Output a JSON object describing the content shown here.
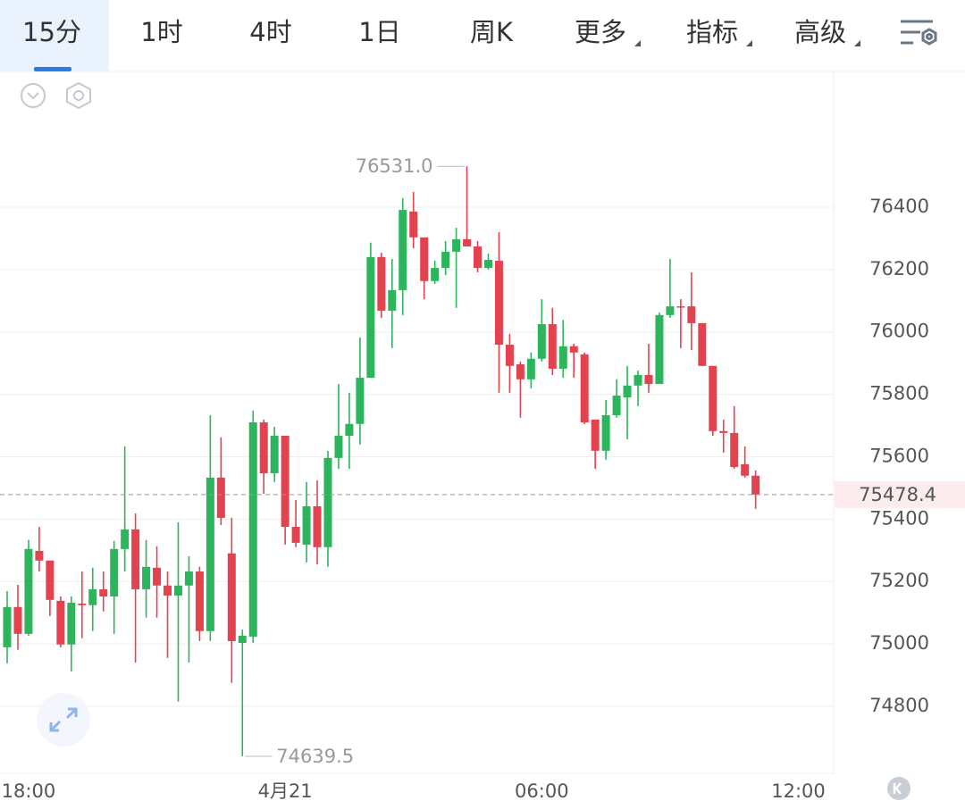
{
  "toolbar": {
    "tabs": [
      "15分",
      "1时",
      "4时",
      "1日",
      "周K",
      "更多",
      "指标",
      "高级"
    ],
    "active": 0
  },
  "chart_data": {
    "type": "candlestick",
    "up_color": "#2db55d",
    "down_color": "#e2434f",
    "open": [
      74989,
      75118,
      75032,
      75298,
      75267,
      75138,
      74998,
      75129,
      75124,
      75175,
      75152,
      75304,
      75367,
      75175,
      75244,
      75187,
      75155,
      75187,
      75232,
      75041,
      75533,
      75290,
      75003,
      75023,
      75710,
      75547,
      75667,
      75375,
      75318,
      75441,
      75310,
      75596,
      75667,
      75705,
      75853,
      76240,
      76068,
      76134,
      76386,
      76303,
      76163,
      76205,
      76257,
      76297,
      76274,
      76205,
      76228,
      75959,
      75896,
      75848,
      75914,
      76025,
      75882,
      75954,
      75928,
      75719,
      75619,
      75733,
      75790,
      75828,
      75862,
      75833,
      76054,
      76082,
      76082,
      76028,
      75891,
      75682,
      75676,
      75576,
      75539
    ],
    "high": [
      75169,
      75189,
      75333,
      75375,
      75267,
      75152,
      75152,
      75232,
      75244,
      75232,
      75330,
      75633,
      75418,
      75333,
      75313,
      75232,
      75390,
      75281,
      75247,
      75733,
      75662,
      75404,
      75046,
      75748,
      75719,
      75696,
      75667,
      75461,
      75519,
      75524,
      75619,
      75833,
      75805,
      75982,
      76286,
      76254,
      76234,
      76429,
      76449,
      76303,
      76228,
      76291,
      76334,
      76531,
      76291,
      76251,
      76320,
      75994,
      75905,
      75934,
      76105,
      76077,
      76039,
      75962,
      75934,
      75719,
      75782,
      75848,
      75891,
      75876,
      75962,
      76062,
      76234,
      76105,
      76191,
      76028,
      75891,
      75719,
      75762,
      75633,
      75556
    ],
    "low": [
      74938,
      74981,
      75026,
      75232,
      75089,
      74989,
      74912,
      75018,
      75041,
      75104,
      75032,
      75232,
      74940,
      75084,
      75084,
      74955,
      74815,
      74940,
      75009,
      75009,
      75381,
      74875,
      74639.5,
      75003,
      75481,
      75519,
      75318,
      75310,
      75261,
      75255,
      75247,
      75561,
      75561,
      75639,
      75853,
      76045,
      75948,
      76054,
      76268,
      76105,
      76154,
      76182,
      76077,
      76274,
      76191,
      76200,
      75805,
      75805,
      75725,
      75819,
      75905,
      75862,
      75853,
      75853,
      75705,
      75561,
      75590,
      75725,
      75656,
      75762,
      75805,
      75833,
      76045,
      75948,
      75942,
      75891,
      75667,
      75613,
      75561,
      75533,
      75433
    ],
    "close": [
      75118,
      75032,
      75304,
      75267,
      75141,
      74998,
      75132,
      75124,
      75175,
      75152,
      75304,
      75367,
      75175,
      75247,
      75187,
      75155,
      75187,
      75232,
      75041,
      75533,
      75404,
      75009,
      75026,
      75710,
      75547,
      75667,
      75375,
      75324,
      75441,
      75310,
      75596,
      75667,
      75705,
      75853,
      76240,
      76068,
      76134,
      76391,
      76303,
      76163,
      76205,
      76257,
      76297,
      76274,
      76205,
      76231,
      75959,
      75891,
      75848,
      75914,
      76025,
      75882,
      75954,
      75934,
      75710,
      75619,
      75733,
      75796,
      75828,
      75862,
      75833,
      76054,
      76082,
      76080,
      76028,
      75891,
      75682,
      75676,
      75567,
      75539,
      75478.4
    ],
    "ylim": [
      74588,
      76835
    ],
    "yticks": [
      74800,
      75000,
      75200,
      75400,
      75600,
      75800,
      76000,
      76200,
      76400
    ],
    "xlim": [
      -0.67,
      77.3
    ],
    "xticks": [
      {
        "value": 2,
        "label": "18:00"
      },
      {
        "value": 26,
        "label": "4月21"
      },
      {
        "value": 50,
        "label": "06:00"
      },
      {
        "value": 74,
        "label": "12:00"
      }
    ],
    "grid": true,
    "annotations": [
      {
        "value": 76531,
        "label": "76531.0"
      },
      74639.5
    ],
    "last_price": 75478.4
  }
}
